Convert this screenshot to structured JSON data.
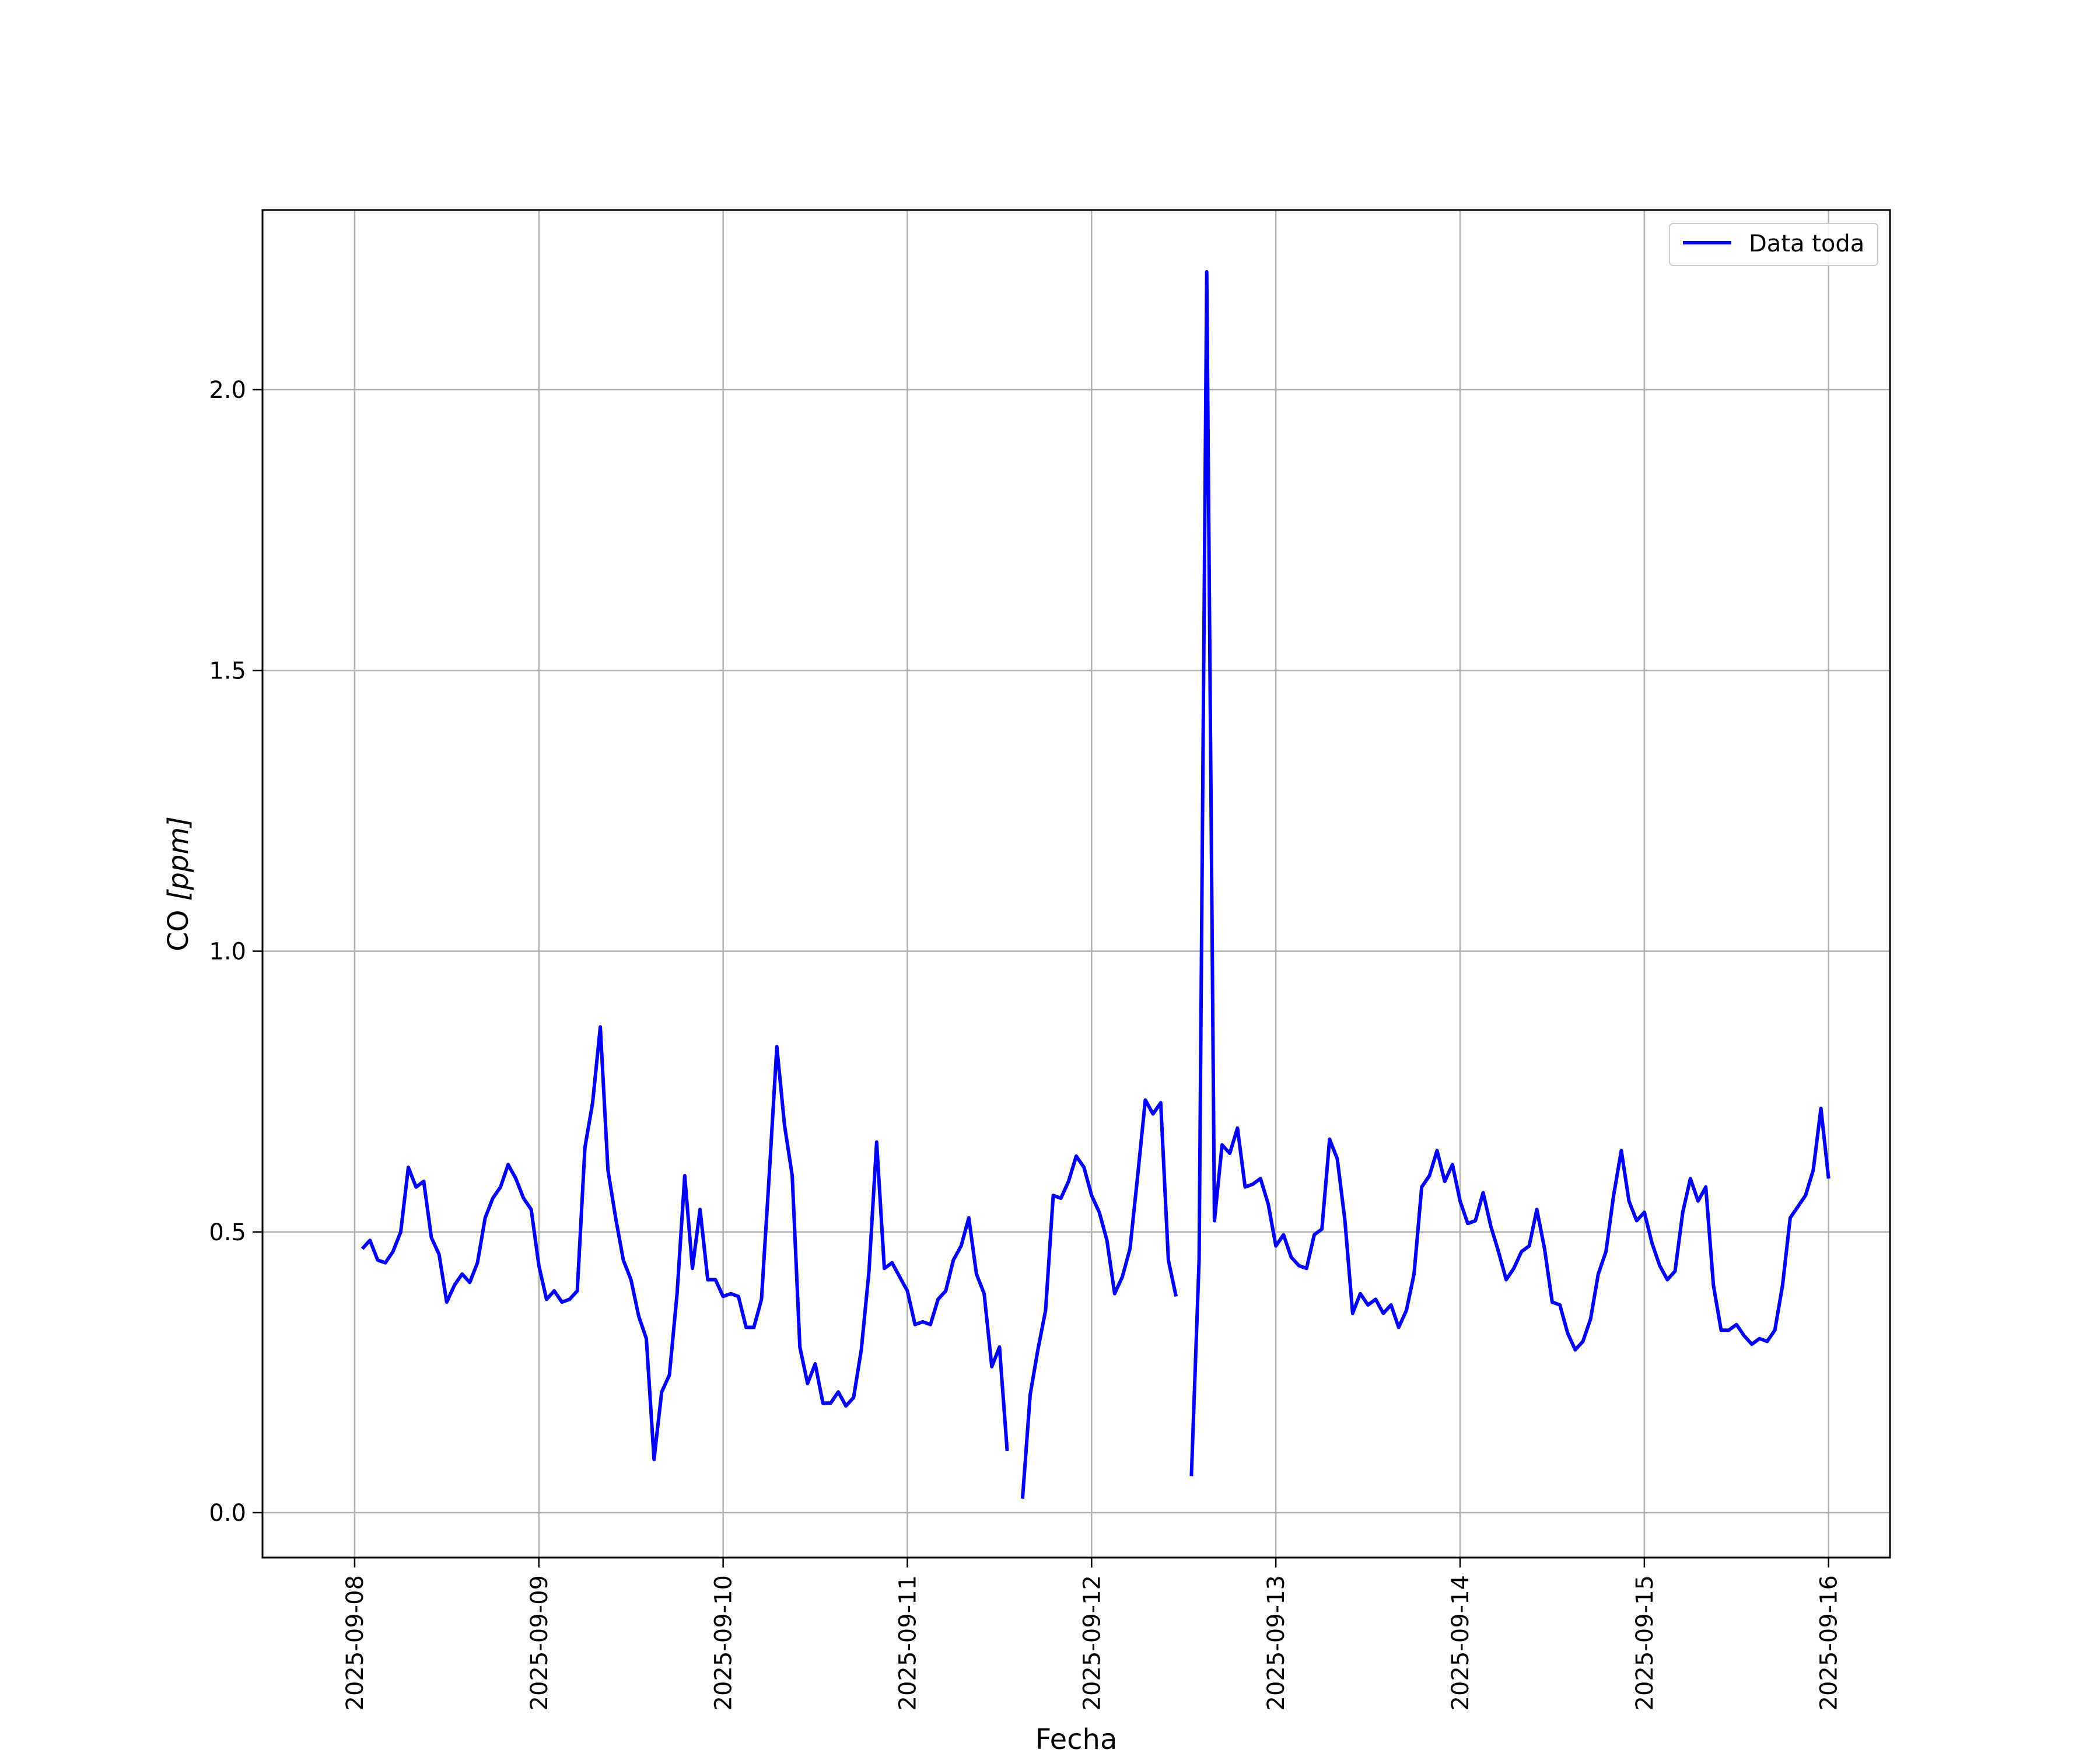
{
  "chart_data": {
    "type": "line",
    "title": "",
    "xlabel": "Fecha",
    "ylabel": {
      "prefix": "CO ",
      "units": "[ppm]"
    },
    "x_tick_labels": [
      "2025-09-08",
      "2025-09-09",
      "2025-09-10",
      "2025-09-11",
      "2025-09-12",
      "2025-09-13",
      "2025-09-14",
      "2025-09-15",
      "2025-09-16"
    ],
    "y_tick_labels": [
      "0.0",
      "0.5",
      "1.0",
      "1.5",
      "2.0"
    ],
    "y_ticks": [
      0.0,
      0.5,
      1.0,
      1.5,
      2.0
    ],
    "xlim": [
      "2025-09-07T12:00",
      "2025-09-16T08:00"
    ],
    "ylim": [
      -0.08,
      2.32
    ],
    "grid": true,
    "legend": {
      "position": "top-right",
      "entries": [
        "Data toda"
      ]
    },
    "series": [
      {
        "name": "Data toda",
        "color": "#0000ff",
        "points": [
          [
            "2025-09-08T01:00",
            0.47
          ],
          [
            "2025-09-08T02:00",
            0.485
          ],
          [
            "2025-09-08T03:00",
            0.45
          ],
          [
            "2025-09-08T04:00",
            0.445
          ],
          [
            "2025-09-08T05:00",
            0.465
          ],
          [
            "2025-09-08T06:00",
            0.5
          ],
          [
            "2025-09-08T07:00",
            0.615
          ],
          [
            "2025-09-08T08:00",
            0.58
          ],
          [
            "2025-09-08T09:00",
            0.59
          ],
          [
            "2025-09-08T10:00",
            0.49
          ],
          [
            "2025-09-08T11:00",
            0.46
          ],
          [
            "2025-09-08T12:00",
            0.375
          ],
          [
            "2025-09-08T13:00",
            0.405
          ],
          [
            "2025-09-08T14:00",
            0.425
          ],
          [
            "2025-09-08T15:00",
            0.41
          ],
          [
            "2025-09-08T16:00",
            0.445
          ],
          [
            "2025-09-08T17:00",
            0.525
          ],
          [
            "2025-09-08T18:00",
            0.56
          ],
          [
            "2025-09-08T19:00",
            0.58
          ],
          [
            "2025-09-08T20:00",
            0.62
          ],
          [
            "2025-09-08T21:00",
            0.595
          ],
          [
            "2025-09-08T22:00",
            0.56
          ],
          [
            "2025-09-08T23:00",
            0.54
          ],
          [
            "2025-09-09T00:00",
            0.44
          ],
          [
            "2025-09-09T01:00",
            0.38
          ],
          [
            "2025-09-09T02:00",
            0.395
          ],
          [
            "2025-09-09T03:00",
            0.375
          ],
          [
            "2025-09-09T04:00",
            0.38
          ],
          [
            "2025-09-09T05:00",
            0.395
          ],
          [
            "2025-09-09T06:00",
            0.65
          ],
          [
            "2025-09-09T07:00",
            0.73
          ],
          [
            "2025-09-09T08:00",
            0.865
          ],
          [
            "2025-09-09T09:00",
            0.61
          ],
          [
            "2025-09-09T10:00",
            0.525
          ],
          [
            "2025-09-09T11:00",
            0.45
          ],
          [
            "2025-09-09T12:00",
            0.415
          ],
          [
            "2025-09-09T13:00",
            0.35
          ],
          [
            "2025-09-09T14:00",
            0.31
          ],
          [
            "2025-09-09T15:00",
            0.095
          ],
          [
            "2025-09-09T16:00",
            0.215
          ],
          [
            "2025-09-09T17:00",
            0.245
          ],
          [
            "2025-09-09T18:00",
            0.39
          ],
          [
            "2025-09-09T19:00",
            0.6
          ],
          [
            "2025-09-09T20:00",
            0.435
          ],
          [
            "2025-09-09T21:00",
            0.54
          ],
          [
            "2025-09-09T22:00",
            0.415
          ],
          [
            "2025-09-09T23:00",
            0.415
          ],
          [
            "2025-09-10T00:00",
            0.385
          ],
          [
            "2025-09-10T01:00",
            0.39
          ],
          [
            "2025-09-10T02:00",
            0.385
          ],
          [
            "2025-09-10T03:00",
            0.33
          ],
          [
            "2025-09-10T04:00",
            0.33
          ],
          [
            "2025-09-10T05:00",
            0.38
          ],
          [
            "2025-09-10T06:00",
            0.6
          ],
          [
            "2025-09-10T07:00",
            0.83
          ],
          [
            "2025-09-10T08:00",
            0.69
          ],
          [
            "2025-09-10T09:00",
            0.6
          ],
          [
            "2025-09-10T10:00",
            0.295
          ],
          [
            "2025-09-10T11:00",
            0.23
          ],
          [
            "2025-09-10T12:00",
            0.265
          ],
          [
            "2025-09-10T13:00",
            0.195
          ],
          [
            "2025-09-10T14:00",
            0.195
          ],
          [
            "2025-09-10T15:00",
            0.215
          ],
          [
            "2025-09-10T16:00",
            0.19
          ],
          [
            "2025-09-10T17:00",
            0.205
          ],
          [
            "2025-09-10T18:00",
            0.29
          ],
          [
            "2025-09-10T19:00",
            0.43
          ],
          [
            "2025-09-10T20:00",
            0.66
          ],
          [
            "2025-09-10T21:00",
            0.435
          ],
          [
            "2025-09-10T22:00",
            0.445
          ],
          [
            "2025-09-10T23:00",
            0.42
          ],
          [
            "2025-09-11T00:00",
            0.395
          ],
          [
            "2025-09-11T01:00",
            0.335
          ],
          [
            "2025-09-11T02:00",
            0.34
          ],
          [
            "2025-09-11T03:00",
            0.335
          ],
          [
            "2025-09-11T04:00",
            0.38
          ],
          [
            "2025-09-11T05:00",
            0.395
          ],
          [
            "2025-09-11T06:00",
            0.45
          ],
          [
            "2025-09-11T07:00",
            0.475
          ],
          [
            "2025-09-11T08:00",
            0.525
          ],
          [
            "2025-09-11T09:00",
            0.425
          ],
          [
            "2025-09-11T10:00",
            0.39
          ],
          [
            "2025-09-11T11:00",
            0.26
          ],
          [
            "2025-09-11T12:00",
            0.295
          ],
          [
            "2025-09-11T13:00",
            0.11
          ],
          [
            "2025-09-11T14:00",
            null
          ],
          [
            "2025-09-11T15:00",
            0.025
          ],
          [
            "2025-09-11T16:00",
            0.21
          ],
          [
            "2025-09-11T17:00",
            0.29
          ],
          [
            "2025-09-11T18:00",
            0.36
          ],
          [
            "2025-09-11T19:00",
            0.565
          ],
          [
            "2025-09-11T20:00",
            0.56
          ],
          [
            "2025-09-11T21:00",
            0.59
          ],
          [
            "2025-09-11T22:00",
            0.635
          ],
          [
            "2025-09-11T23:00",
            0.615
          ],
          [
            "2025-09-12T00:00",
            0.565
          ],
          [
            "2025-09-12T01:00",
            0.535
          ],
          [
            "2025-09-12T02:00",
            0.485
          ],
          [
            "2025-09-12T03:00",
            0.39
          ],
          [
            "2025-09-12T04:00",
            0.42
          ],
          [
            "2025-09-12T05:00",
            0.47
          ],
          [
            "2025-09-12T06:00",
            0.6
          ],
          [
            "2025-09-12T07:00",
            0.735
          ],
          [
            "2025-09-12T08:00",
            0.71
          ],
          [
            "2025-09-12T09:00",
            0.73
          ],
          [
            "2025-09-12T10:00",
            0.45
          ],
          [
            "2025-09-12T11:00",
            0.385
          ],
          [
            "2025-09-12T12:00",
            null
          ],
          [
            "2025-09-12T13:00",
            0.065
          ],
          [
            "2025-09-12T14:00",
            0.45
          ],
          [
            "2025-09-12T15:00",
            2.21
          ],
          [
            "2025-09-12T16:00",
            0.52
          ],
          [
            "2025-09-12T17:00",
            0.655
          ],
          [
            "2025-09-12T18:00",
            0.64
          ],
          [
            "2025-09-12T19:00",
            0.685
          ],
          [
            "2025-09-12T20:00",
            0.58
          ],
          [
            "2025-09-12T21:00",
            0.585
          ],
          [
            "2025-09-12T22:00",
            0.595
          ],
          [
            "2025-09-12T23:00",
            0.55
          ],
          [
            "2025-09-13T00:00",
            0.475
          ],
          [
            "2025-09-13T01:00",
            0.495
          ],
          [
            "2025-09-13T02:00",
            0.455
          ],
          [
            "2025-09-13T03:00",
            0.44
          ],
          [
            "2025-09-13T04:00",
            0.435
          ],
          [
            "2025-09-13T05:00",
            0.495
          ],
          [
            "2025-09-13T06:00",
            0.505
          ],
          [
            "2025-09-13T07:00",
            0.665
          ],
          [
            "2025-09-13T08:00",
            0.63
          ],
          [
            "2025-09-13T09:00",
            0.52
          ],
          [
            "2025-09-13T10:00",
            0.355
          ],
          [
            "2025-09-13T11:00",
            0.39
          ],
          [
            "2025-09-13T12:00",
            0.37
          ],
          [
            "2025-09-13T13:00",
            0.38
          ],
          [
            "2025-09-13T14:00",
            0.355
          ],
          [
            "2025-09-13T15:00",
            0.37
          ],
          [
            "2025-09-13T16:00",
            0.33
          ],
          [
            "2025-09-13T17:00",
            0.36
          ],
          [
            "2025-09-13T18:00",
            0.425
          ],
          [
            "2025-09-13T19:00",
            0.58
          ],
          [
            "2025-09-13T20:00",
            0.6
          ],
          [
            "2025-09-13T21:00",
            0.645
          ],
          [
            "2025-09-13T22:00",
            0.59
          ],
          [
            "2025-09-13T23:00",
            0.62
          ],
          [
            "2025-09-14T00:00",
            0.555
          ],
          [
            "2025-09-14T01:00",
            0.515
          ],
          [
            "2025-09-14T02:00",
            0.52
          ],
          [
            "2025-09-14T03:00",
            0.57
          ],
          [
            "2025-09-14T04:00",
            0.51
          ],
          [
            "2025-09-14T05:00",
            0.465
          ],
          [
            "2025-09-14T06:00",
            0.415
          ],
          [
            "2025-09-14T07:00",
            0.435
          ],
          [
            "2025-09-14T08:00",
            0.465
          ],
          [
            "2025-09-14T09:00",
            0.475
          ],
          [
            "2025-09-14T10:00",
            0.54
          ],
          [
            "2025-09-14T11:00",
            0.47
          ],
          [
            "2025-09-14T12:00",
            0.375
          ],
          [
            "2025-09-14T13:00",
            0.37
          ],
          [
            "2025-09-14T14:00",
            0.32
          ],
          [
            "2025-09-14T15:00",
            0.29
          ],
          [
            "2025-09-14T16:00",
            0.305
          ],
          [
            "2025-09-14T17:00",
            0.345
          ],
          [
            "2025-09-14T18:00",
            0.425
          ],
          [
            "2025-09-14T19:00",
            0.465
          ],
          [
            "2025-09-14T20:00",
            0.565
          ],
          [
            "2025-09-14T21:00",
            0.645
          ],
          [
            "2025-09-14T22:00",
            0.555
          ],
          [
            "2025-09-14T23:00",
            0.52
          ],
          [
            "2025-09-15T00:00",
            0.535
          ],
          [
            "2025-09-15T01:00",
            0.48
          ],
          [
            "2025-09-15T02:00",
            0.44
          ],
          [
            "2025-09-15T03:00",
            0.415
          ],
          [
            "2025-09-15T04:00",
            0.43
          ],
          [
            "2025-09-15T05:00",
            0.535
          ],
          [
            "2025-09-15T06:00",
            0.595
          ],
          [
            "2025-09-15T07:00",
            0.555
          ],
          [
            "2025-09-15T08:00",
            0.58
          ],
          [
            "2025-09-15T09:00",
            0.405
          ],
          [
            "2025-09-15T10:00",
            0.325
          ],
          [
            "2025-09-15T11:00",
            0.325
          ],
          [
            "2025-09-15T12:00",
            0.335
          ],
          [
            "2025-09-15T13:00",
            0.315
          ],
          [
            "2025-09-15T14:00",
            0.3
          ],
          [
            "2025-09-15T15:00",
            0.31
          ],
          [
            "2025-09-15T16:00",
            0.305
          ],
          [
            "2025-09-15T17:00",
            0.325
          ],
          [
            "2025-09-15T18:00",
            0.405
          ],
          [
            "2025-09-15T19:00",
            0.525
          ],
          [
            "2025-09-15T20:00",
            0.545
          ],
          [
            "2025-09-15T21:00",
            0.565
          ],
          [
            "2025-09-15T22:00",
            0.61
          ],
          [
            "2025-09-15T23:00",
            0.72
          ],
          [
            "2025-09-16T00:00",
            0.595
          ]
        ]
      }
    ]
  }
}
